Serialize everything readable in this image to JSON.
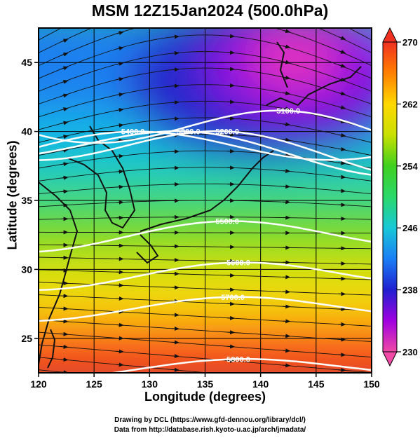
{
  "title": "MSM 12Z15Jan2024 (500.0hPa)",
  "xlabel": "Longitude (degrees)",
  "ylabel": "Latitude  (degrees)",
  "credit_line1": "Drawing by DCL (https://www.gfd-dennou.org/library/dcl/)",
  "credit_line2": "Data from http://database.rish.kyoto-u.ac.jp/arch/jmadata/",
  "chart_data": {
    "type": "heatmap",
    "title": "MSM 12Z15Jan2024 (500.0hPa)",
    "xlabel": "Longitude (degrees)",
    "ylabel": "Latitude  (degrees)",
    "xlim": [
      120,
      150
    ],
    "ylim": [
      22.5,
      47.5
    ],
    "xticks": [
      120,
      125,
      130,
      135,
      140,
      145,
      150
    ],
    "yticks": [
      25,
      30,
      35,
      40,
      45
    ],
    "grid": true,
    "colorbar": {
      "min": 230,
      "max": 270,
      "ticks": [
        230,
        238,
        246,
        254,
        262,
        270
      ],
      "extend": "both",
      "placement": "right"
    },
    "contours": [
      {
        "label": "5100.0",
        "lon": 142.5,
        "lat": 41.5
      },
      {
        "label": "5200.0",
        "lon": 137,
        "lat": 40
      },
      {
        "label": "5300.0",
        "lon": 133.5,
        "lat": 40
      },
      {
        "label": "5400.0",
        "lon": 128.5,
        "lat": 40
      },
      {
        "label": "5500.0",
        "lon": 137,
        "lat": 33.5
      },
      {
        "label": "5600.0",
        "lon": 138,
        "lat": 30.5
      },
      {
        "label": "5700.0",
        "lon": 137.5,
        "lat": 28
      },
      {
        "label": "5800.0",
        "lon": 138,
        "lat": 23.5
      }
    ],
    "streamlines": "wind vectors at 500.0hPa, westerly flow"
  }
}
